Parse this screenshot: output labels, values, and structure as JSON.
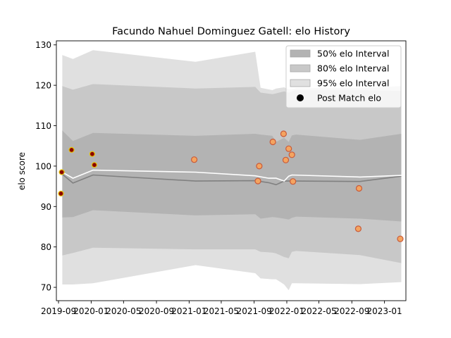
{
  "chart_data": {
    "type": "area",
    "title": "Facundo Nahuel Dominguez Gatell: elo History",
    "xlabel": "",
    "ylabel": "elo score",
    "xlim": [
      "2019-08-24",
      "2023-03-22"
    ],
    "ylim": [
      66.7,
      131.0
    ],
    "y_ticks": [
      70,
      80,
      90,
      100,
      110,
      120,
      130
    ],
    "x_ticks": [
      {
        "date": "2019-09-01",
        "label": "2019-09"
      },
      {
        "date": "2020-01-01",
        "label": "2020-01"
      },
      {
        "date": "2020-05-01",
        "label": "2020-05"
      },
      {
        "date": "2020-09-01",
        "label": "2020-09"
      },
      {
        "date": "2021-01-01",
        "label": "2021-01"
      },
      {
        "date": "2021-05-01",
        "label": "2021-05"
      },
      {
        "date": "2021-09-01",
        "label": "2021-09"
      },
      {
        "date": "2022-01-01",
        "label": "2022-01"
      },
      {
        "date": "2022-05-01",
        "label": "2022-05"
      },
      {
        "date": "2022-09-01",
        "label": "2022-09"
      },
      {
        "date": "2023-01-01",
        "label": "2023-01"
      }
    ],
    "grid": false,
    "legend_position": "top-right",
    "legend": [
      {
        "label": "50% elo Interval",
        "kind": "band",
        "color": "#b3b3b3"
      },
      {
        "label": "80% elo Interval",
        "kind": "band",
        "color": "#c8c8c8"
      },
      {
        "label": "95% elo Interval",
        "kind": "band",
        "color": "#e0e0e0"
      },
      {
        "label": "Post Match elo",
        "kind": "marker",
        "color": "#000000"
      }
    ],
    "bands": {
      "x": [
        "2019-09-15",
        "2019-10-25",
        "2020-01-08",
        "2021-01-25",
        "2021-09-05",
        "2021-09-25",
        "2021-11-08",
        "2021-11-22",
        "2021-12-22",
        "2022-01-08",
        "2022-01-20",
        "2022-02-05",
        "2022-10-01",
        "2023-03-05"
      ],
      "p95": {
        "color": "#e0e0e0",
        "upper": [
          127.5,
          126.5,
          128.7,
          125.8,
          128.3,
          119.4,
          118.8,
          119.2,
          119.5,
          119.0,
          119.0,
          119.3,
          119.3,
          119.8
        ],
        "lower": [
          70.7,
          70.7,
          71.0,
          75.5,
          73.5,
          72.2,
          72.0,
          72.0,
          70.7,
          69.3,
          71.0,
          71.0,
          70.8,
          71.3
        ]
      },
      "p80": {
        "color": "#c8c8c8",
        "upper": [
          119.8,
          118.9,
          120.3,
          119.2,
          119.6,
          118.2,
          117.8,
          118.0,
          118.5,
          118.2,
          118.5,
          118.8,
          118.8,
          118.6
        ],
        "lower": [
          77.9,
          78.5,
          79.8,
          79.4,
          79.4,
          78.8,
          78.6,
          78.4,
          77.5,
          77.2,
          78.8,
          79.0,
          78.0,
          76.0
        ],
        "darker_upper": [
          108.8,
          106.2,
          108.2,
          107.5,
          108.0,
          107.8,
          107.5,
          106.0,
          107.0,
          106.0,
          107.6,
          107.8,
          106.5,
          108.0
        ],
        "darker_lower": [
          87.3,
          87.4,
          89.1,
          87.8,
          88.1,
          87.0,
          87.4,
          87.3,
          87.0,
          86.8,
          87.2,
          87.5,
          87.0,
          86.3
        ]
      }
    },
    "mean_line": {
      "color": "#808080",
      "x": [
        "2019-09-15",
        "2019-10-25",
        "2020-01-08",
        "2021-01-25",
        "2021-09-05",
        "2021-10-25",
        "2021-11-22",
        "2021-12-22",
        "2022-01-20",
        "2022-10-01",
        "2023-03-05"
      ],
      "y": [
        98.0,
        95.8,
        97.8,
        96.3,
        96.4,
        95.9,
        95.4,
        96.3,
        96.3,
        96.2,
        97.5
      ]
    },
    "rating_line": {
      "color": "#ffffff",
      "x": [
        "2019-09-15",
        "2019-10-25",
        "2020-01-08",
        "2021-01-25",
        "2021-09-05",
        "2021-10-25",
        "2021-11-22",
        "2021-12-22",
        "2022-01-08",
        "2022-01-20",
        "2022-10-01",
        "2023-03-05"
      ],
      "y": [
        98.5,
        97.0,
        99.0,
        98.5,
        97.6,
        97.0,
        97.0,
        96.3,
        97.5,
        97.8,
        97.3,
        97.7
      ]
    },
    "series": [
      {
        "name": "Post Match elo",
        "points": [
          {
            "x": "2019-09-10",
            "y": 93.2
          },
          {
            "x": "2019-09-13",
            "y": 98.5
          },
          {
            "x": "2019-10-20",
            "y": 104.0
          },
          {
            "x": "2020-01-05",
            "y": 103.0
          },
          {
            "x": "2020-01-13",
            "y": 100.3
          },
          {
            "x": "2021-01-20",
            "y": 101.6
          },
          {
            "x": "2021-09-15",
            "y": 96.3
          },
          {
            "x": "2021-09-20",
            "y": 100.0
          },
          {
            "x": "2021-11-10",
            "y": 106.0
          },
          {
            "x": "2021-12-20",
            "y": 108.0
          },
          {
            "x": "2021-12-28",
            "y": 101.5
          },
          {
            "x": "2022-01-08",
            "y": 104.3
          },
          {
            "x": "2022-01-20",
            "y": 102.8
          },
          {
            "x": "2022-01-24",
            "y": 96.2
          },
          {
            "x": "2022-09-25",
            "y": 84.5
          },
          {
            "x": "2022-09-28",
            "y": 94.5
          },
          {
            "x": "2023-03-01",
            "y": 82.0
          }
        ]
      }
    ]
  }
}
